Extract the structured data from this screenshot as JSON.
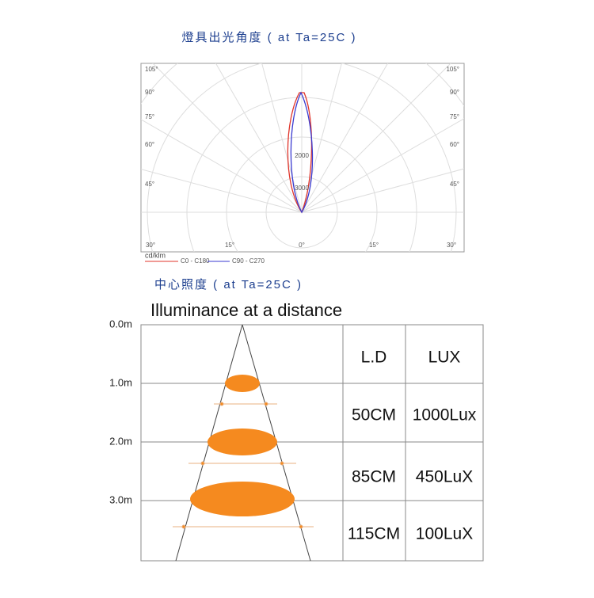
{
  "header": {
    "title": "燈具出光角度 ( at Ta=25C )"
  },
  "polar": {
    "left_angles": [
      "105°",
      "90°",
      "75°",
      "60°",
      "45°"
    ],
    "right_angles": [
      "105°",
      "90°",
      "75°",
      "60°",
      "45°"
    ],
    "bottom_angles": [
      "30°",
      "15°",
      "0°",
      "15°",
      "30°"
    ],
    "intensity_labels": [
      "2000",
      "3000"
    ],
    "unit": "cd/klm",
    "legend": [
      "C0 - C180",
      "C90 - C270"
    ]
  },
  "section": {
    "title": "中心照度 ( at Ta=25C )",
    "subtitle": "Illuminance at a distance"
  },
  "distances": [
    "0.0m",
    "1.0m",
    "2.0m",
    "3.0m"
  ],
  "table": {
    "header": [
      "L.D",
      "LUX"
    ],
    "rows": [
      [
        "50CM",
        "1000Lux"
      ],
      [
        "85CM",
        "450LuX"
      ],
      [
        "115CM",
        "100LuX"
      ]
    ]
  }
}
